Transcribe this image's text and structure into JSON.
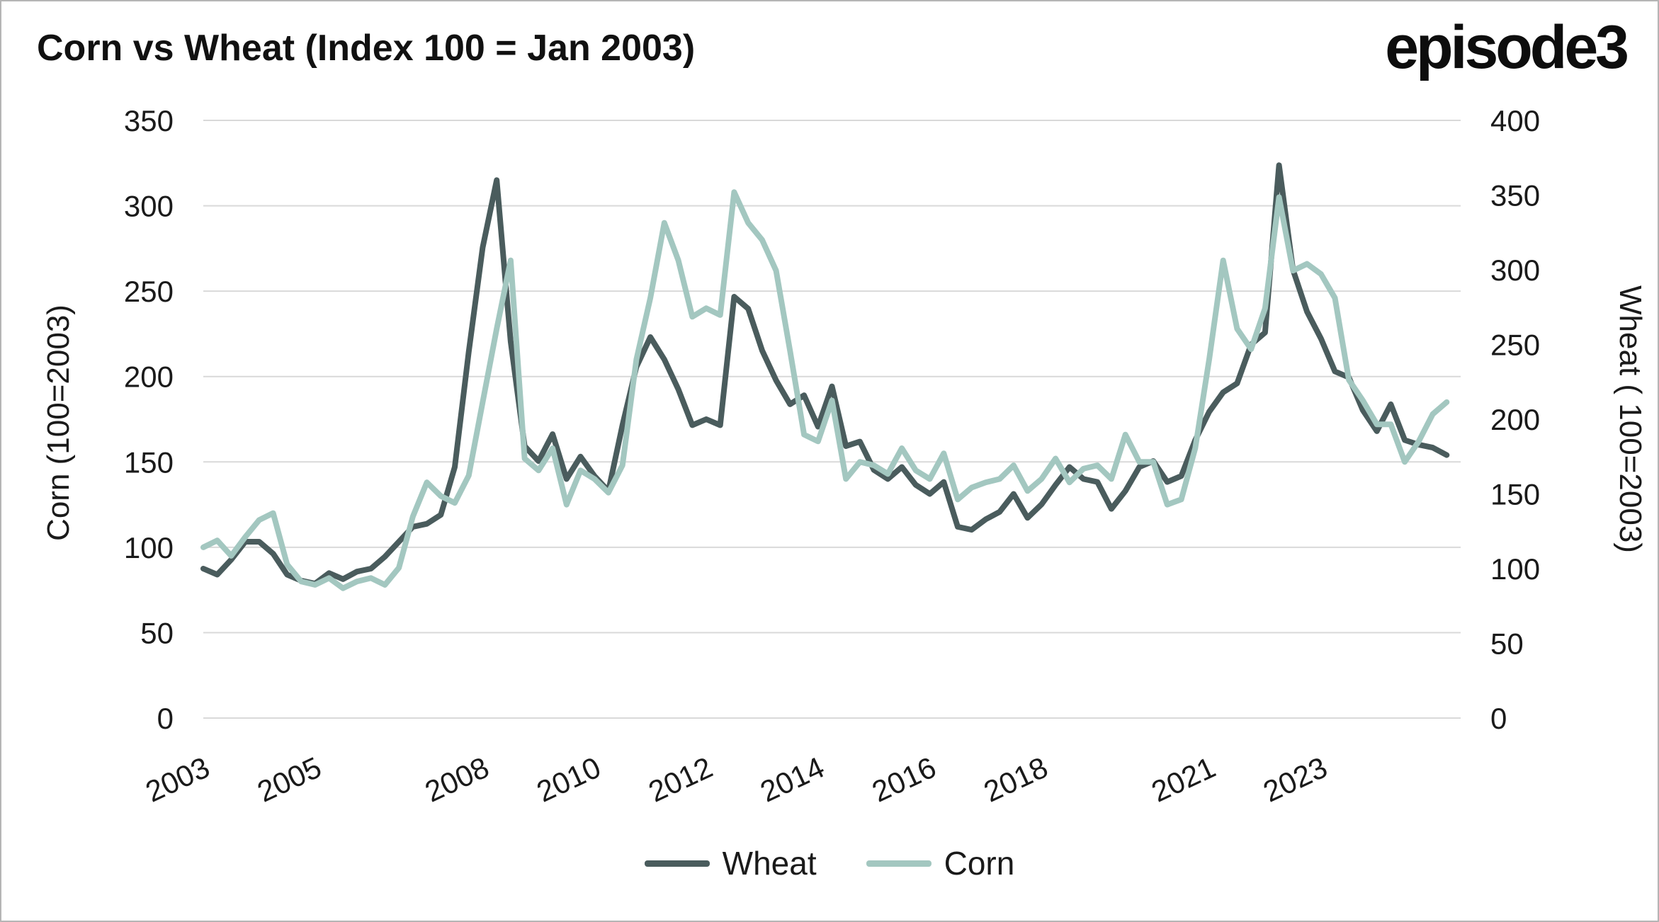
{
  "page": {
    "title": "Corn vs Wheat (Index 100 = Jan 2003)",
    "logo": "episode3"
  },
  "chart_data": {
    "type": "line",
    "title": "Corn vs Wheat (Index 100 = Jan 2003)",
    "grid": "horizontal",
    "grid_color": "#d9d9d9",
    "background": "#ffffff",
    "legend_position": "bottom",
    "x_range": [
      2003,
      2025.5
    ],
    "x_ticks": [
      {
        "year": 2003,
        "label": "2003"
      },
      {
        "year": 2005,
        "label": "2005"
      },
      {
        "year": 2008,
        "label": "2008"
      },
      {
        "year": 2010,
        "label": "2010"
      },
      {
        "year": 2012,
        "label": "2012"
      },
      {
        "year": 2014,
        "label": "2014"
      },
      {
        "year": 2016,
        "label": "2016"
      },
      {
        "year": 2018,
        "label": "2018"
      },
      {
        "year": 2021,
        "label": "2021"
      },
      {
        "year": 2023,
        "label": "2023"
      }
    ],
    "left_axis": {
      "label": "Corn (100=2003)",
      "range": [
        0,
        350
      ],
      "ticks": [
        0,
        50,
        100,
        150,
        200,
        250,
        300,
        350
      ]
    },
    "right_axis": {
      "label": "Wheat ( 100=2003)",
      "range": [
        0,
        400
      ],
      "ticks": [
        0,
        50,
        100,
        150,
        200,
        250,
        300,
        350,
        400
      ]
    },
    "x": [
      2003,
      2003.25,
      2003.5,
      2003.75,
      2004,
      2004.25,
      2004.5,
      2004.75,
      2005,
      2005.25,
      2005.5,
      2005.75,
      2006,
      2006.25,
      2006.5,
      2006.75,
      2007,
      2007.25,
      2007.5,
      2007.75,
      2008,
      2008.25,
      2008.5,
      2008.75,
      2009,
      2009.25,
      2009.5,
      2009.75,
      2010,
      2010.25,
      2010.5,
      2010.75,
      2011,
      2011.25,
      2011.5,
      2011.75,
      2012,
      2012.25,
      2012.5,
      2012.75,
      2013,
      2013.25,
      2013.5,
      2013.75,
      2014,
      2014.25,
      2014.5,
      2014.75,
      2015,
      2015.25,
      2015.5,
      2015.75,
      2016,
      2016.25,
      2016.5,
      2016.75,
      2017,
      2017.25,
      2017.5,
      2017.75,
      2018,
      2018.25,
      2018.5,
      2018.75,
      2019,
      2019.25,
      2019.5,
      2019.75,
      2020,
      2020.25,
      2020.5,
      2020.75,
      2021,
      2021.25,
      2021.5,
      2021.75,
      2022,
      2022.25,
      2022.5,
      2022.75,
      2023,
      2023.25,
      2023.5,
      2023.75,
      2024,
      2024.25,
      2024.5,
      2024.75,
      2025,
      2025.25
    ],
    "series": [
      {
        "name": "Wheat",
        "axis": "right",
        "color": "#4a5c5d",
        "values": [
          100,
          96,
          106,
          118,
          118,
          110,
          96,
          92,
          90,
          97,
          93,
          98,
          100,
          108,
          118,
          128,
          130,
          136,
          168,
          245,
          315,
          360,
          252,
          182,
          172,
          190,
          160,
          175,
          162,
          152,
          196,
          235,
          255,
          240,
          220,
          196,
          200,
          196,
          282,
          274,
          246,
          226,
          210,
          216,
          195,
          222,
          182,
          185,
          166,
          160,
          168,
          156,
          150,
          158,
          128,
          126,
          133,
          138,
          150,
          134,
          143,
          156,
          168,
          160,
          158,
          140,
          152,
          168,
          172,
          158,
          162,
          186,
          205,
          218,
          224,
          250,
          258,
          370,
          300,
          272,
          254,
          232,
          228,
          206,
          192,
          210,
          186,
          183,
          181,
          176
        ]
      },
      {
        "name": "Corn",
        "axis": "left",
        "color": "#a3c7c0",
        "values": [
          100,
          104,
          95,
          106,
          116,
          120,
          90,
          80,
          78,
          82,
          76,
          80,
          82,
          78,
          88,
          118,
          138,
          130,
          126,
          142,
          185,
          228,
          268,
          152,
          145,
          158,
          125,
          145,
          140,
          132,
          148,
          210,
          246,
          290,
          268,
          235,
          240,
          236,
          308,
          290,
          280,
          262,
          215,
          166,
          162,
          186,
          140,
          150,
          148,
          143,
          158,
          145,
          140,
          155,
          128,
          135,
          138,
          140,
          148,
          133,
          140,
          152,
          138,
          146,
          148,
          140,
          166,
          150,
          150,
          125,
          128,
          158,
          210,
          268,
          228,
          216,
          240,
          305,
          262,
          266,
          260,
          246,
          198,
          186,
          172,
          172,
          150,
          162,
          178,
          185
        ]
      }
    ]
  }
}
